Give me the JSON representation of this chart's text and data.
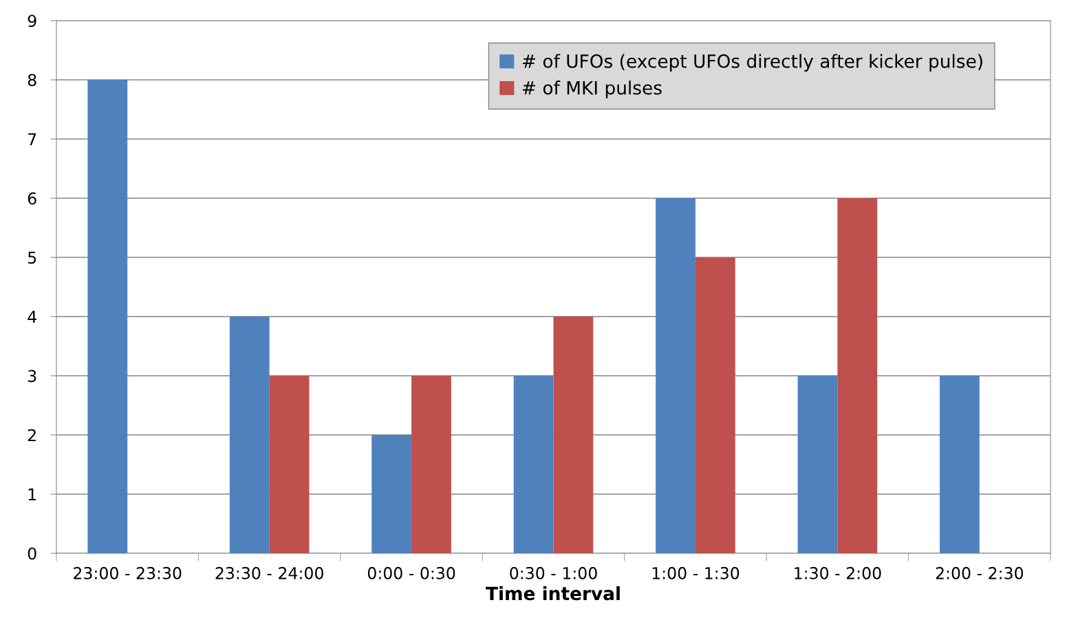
{
  "chart_data": {
    "type": "bar",
    "xlabel": "Time interval",
    "categories": [
      "23:00 - 23:30",
      "23:30 - 24:00",
      "0:00 - 0:30",
      "0:30 - 1:00",
      "1:00 - 1:30",
      "1:30 - 2:00",
      "2:00 - 2:30"
    ],
    "series": [
      {
        "name": "# of UFOs (except UFOs directly after kicker pulse)",
        "color": "#4f81bd",
        "values": [
          8,
          4,
          2,
          3,
          6,
          3,
          3
        ]
      },
      {
        "name": "# of MKI pulses",
        "color": "#c0504d",
        "values": [
          null,
          3,
          3,
          4,
          5,
          6,
          null
        ]
      }
    ],
    "ylim": [
      0,
      9
    ],
    "yticks": [
      0,
      1,
      2,
      3,
      4,
      5,
      6,
      7,
      8,
      9
    ],
    "grid": "y",
    "legend": "top right"
  }
}
